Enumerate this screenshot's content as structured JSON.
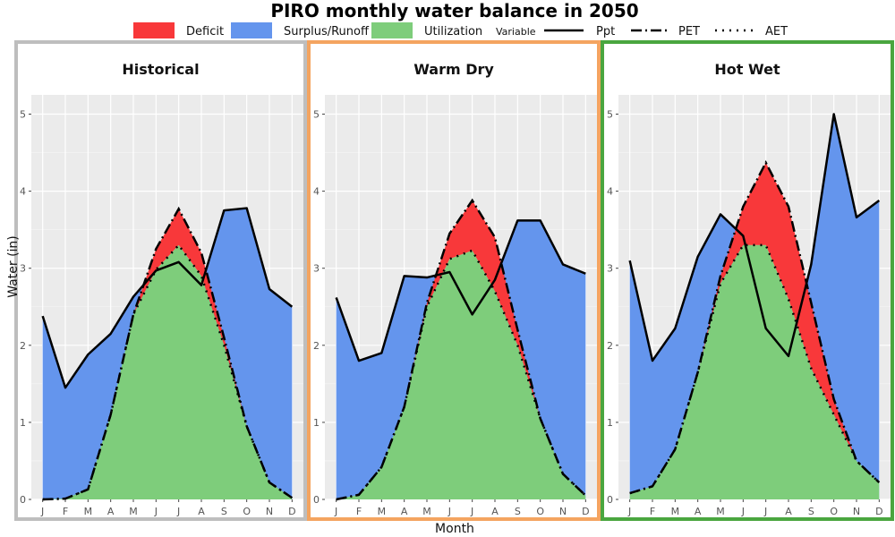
{
  "title": "PIRO monthly water balance in 2050",
  "xlabel": "Month",
  "ylabel": "Water (in)",
  "legend": {
    "fill_items": [
      {
        "label": "Deficit",
        "color": "#f8383a"
      },
      {
        "label": "Surplus/Runoff",
        "color": "#6495ed"
      },
      {
        "label": "Utilization",
        "color": "#7ecd7b"
      }
    ],
    "variable_title": "Variable",
    "line_items": [
      {
        "label": "Ppt",
        "style": "solid"
      },
      {
        "label": "PET",
        "style": "dashdot"
      },
      {
        "label": "AET",
        "style": "dotted"
      }
    ]
  },
  "chart_data": {
    "type": "area",
    "x": [
      "J",
      "F",
      "M",
      "A",
      "M",
      "J",
      "J",
      "A",
      "S",
      "O",
      "N",
      "D"
    ],
    "ylim": [
      0,
      5.25
    ],
    "yticks": [
      0,
      1,
      2,
      3,
      4,
      5
    ],
    "grid": true,
    "legend_position": "top",
    "panels": [
      {
        "title": "Historical",
        "border_color": "#bebebe",
        "ppt": [
          2.38,
          1.45,
          1.88,
          2.15,
          2.63,
          2.97,
          3.08,
          2.78,
          3.75,
          3.78,
          2.73,
          2.5
        ],
        "pet": [
          0.0,
          0.01,
          0.13,
          1.1,
          2.4,
          3.25,
          3.77,
          3.2,
          2.1,
          0.95,
          0.22,
          0.02
        ],
        "aet": [
          0.0,
          0.01,
          0.13,
          1.1,
          2.4,
          2.98,
          3.3,
          2.9,
          2.0,
          0.95,
          0.22,
          0.02
        ]
      },
      {
        "title": "Warm Dry",
        "border_color": "#f4a460",
        "ppt": [
          2.62,
          1.8,
          1.9,
          2.9,
          2.88,
          2.95,
          2.4,
          2.85,
          3.62,
          3.62,
          3.05,
          2.93
        ],
        "pet": [
          0.0,
          0.06,
          0.42,
          1.2,
          2.55,
          3.45,
          3.88,
          3.4,
          2.2,
          1.05,
          0.33,
          0.05
        ],
        "aet": [
          0.0,
          0.06,
          0.42,
          1.2,
          2.5,
          3.12,
          3.23,
          2.7,
          2.0,
          1.05,
          0.33,
          0.05
        ]
      },
      {
        "title": "Hot Wet",
        "border_color": "#4aa63f",
        "ppt": [
          3.1,
          1.8,
          2.22,
          3.15,
          3.7,
          3.42,
          2.22,
          1.86,
          3.05,
          5.0,
          3.66,
          3.88
        ],
        "pet": [
          0.08,
          0.17,
          0.65,
          1.65,
          2.9,
          3.8,
          4.37,
          3.8,
          2.55,
          1.3,
          0.5,
          0.22
        ],
        "aet": [
          0.08,
          0.17,
          0.65,
          1.65,
          2.8,
          3.3,
          3.3,
          2.6,
          1.7,
          1.1,
          0.5,
          0.22
        ]
      }
    ]
  }
}
